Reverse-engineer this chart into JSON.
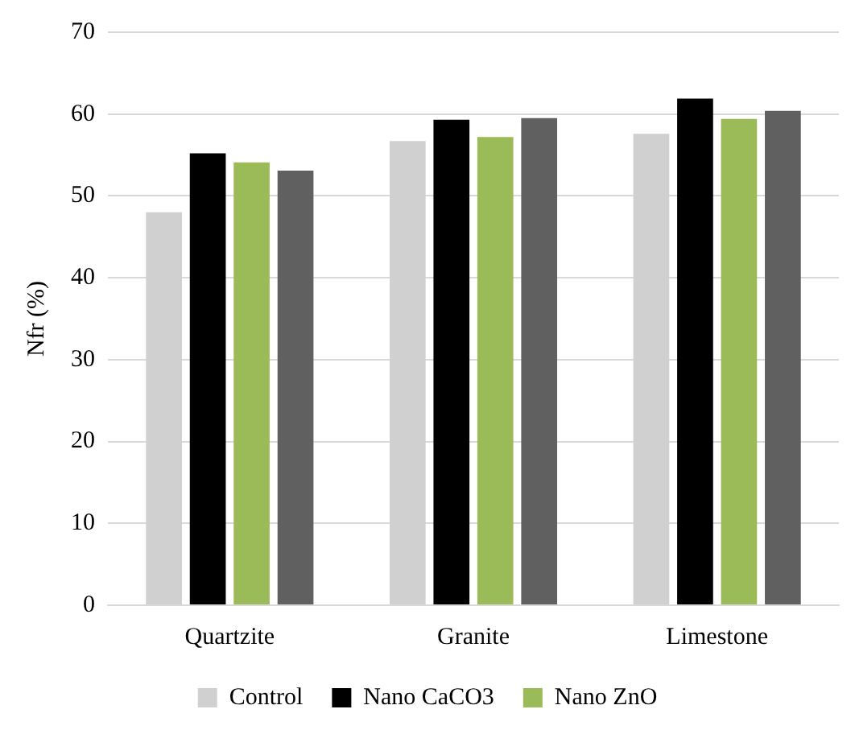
{
  "chart_data": {
    "type": "bar",
    "ylabel": "Nfr (%)",
    "categories": [
      "Quartzite",
      "Granite",
      "Limestone"
    ],
    "series": [
      {
        "name": "Control",
        "color": "#d0d0d0",
        "values": [
          48,
          56.7,
          57.6
        ]
      },
      {
        "name": "Nano CaCO3",
        "color": "#000000",
        "values": [
          55.2,
          59.3,
          61.9
        ]
      },
      {
        "name": "Nano ZnO",
        "color": "#9bbb59",
        "values": [
          54.1,
          57.2,
          59.4
        ]
      },
      {
        "color": "#606060",
        "values": [
          53.1,
          59.5,
          60.4
        ]
      }
    ],
    "ylim": [
      0,
      70
    ],
    "yticks": [
      0,
      10,
      20,
      30,
      40,
      50,
      60,
      70
    ],
    "grid": "y",
    "legend": "bottom"
  }
}
